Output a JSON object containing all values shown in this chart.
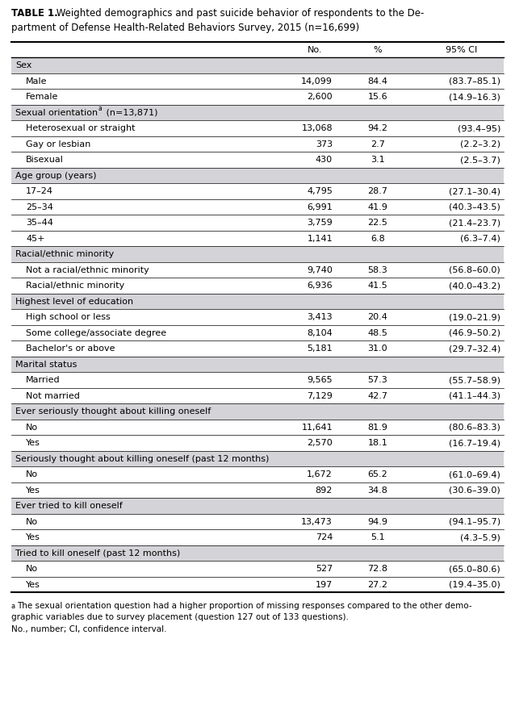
{
  "title_bold": "TABLE 1.",
  "title_line1_normal": " Weighted demographics and past suicide behavior of respondents to the De-",
  "title_line2_normal": "partment of Defense Health-Related Behaviors Survey, 2015 (n=16,699)",
  "col_headers": [
    "No.",
    "%",
    "95% CI"
  ],
  "rows": [
    {
      "label": "Sex",
      "indent": 0,
      "header": true,
      "no": "",
      "pct": "",
      "ci": ""
    },
    {
      "label": "Male",
      "indent": 1,
      "header": false,
      "no": "14,099",
      "pct": "84.4",
      "ci": "(83.7–85.1)"
    },
    {
      "label": "Female",
      "indent": 1,
      "header": false,
      "no": "2,600",
      "pct": "15.6",
      "ci": "(14.9–16.3)"
    },
    {
      "label": "Sexual orientation",
      "label2": " (n=13,871)",
      "superscript": "a",
      "indent": 0,
      "header": true,
      "no": "",
      "pct": "",
      "ci": ""
    },
    {
      "label": "Heterosexual or straight",
      "indent": 1,
      "header": false,
      "no": "13,068",
      "pct": "94.2",
      "ci": "(93.4–95)"
    },
    {
      "label": "Gay or lesbian",
      "indent": 1,
      "header": false,
      "no": "373",
      "pct": "2.7",
      "ci": "(2.2–3.2)"
    },
    {
      "label": "Bisexual",
      "indent": 1,
      "header": false,
      "no": "430",
      "pct": "3.1",
      "ci": "(2.5–3.7)"
    },
    {
      "label": "Age group (years)",
      "indent": 0,
      "header": true,
      "no": "",
      "pct": "",
      "ci": ""
    },
    {
      "label": "17–24",
      "indent": 1,
      "header": false,
      "no": "4,795",
      "pct": "28.7",
      "ci": "(27.1–30.4)"
    },
    {
      "label": "25–34",
      "indent": 1,
      "header": false,
      "no": "6,991",
      "pct": "41.9",
      "ci": "(40.3–43.5)"
    },
    {
      "label": "35–44",
      "indent": 1,
      "header": false,
      "no": "3,759",
      "pct": "22.5",
      "ci": "(21.4–23.7)"
    },
    {
      "label": "45+",
      "indent": 1,
      "header": false,
      "no": "1,141",
      "pct": "6.8",
      "ci": "(6.3–7.4)"
    },
    {
      "label": "Racial/ethnic minority",
      "indent": 0,
      "header": true,
      "no": "",
      "pct": "",
      "ci": ""
    },
    {
      "label": "Not a racial/ethnic minority",
      "indent": 1,
      "header": false,
      "no": "9,740",
      "pct": "58.3",
      "ci": "(56.8–60.0)"
    },
    {
      "label": "Racial/ethnic minority",
      "indent": 1,
      "header": false,
      "no": "6,936",
      "pct": "41.5",
      "ci": "(40.0–43.2)"
    },
    {
      "label": "Highest level of education",
      "indent": 0,
      "header": true,
      "no": "",
      "pct": "",
      "ci": ""
    },
    {
      "label": "High school or less",
      "indent": 1,
      "header": false,
      "no": "3,413",
      "pct": "20.4",
      "ci": "(19.0–21.9)"
    },
    {
      "label": "Some college/associate degree",
      "indent": 1,
      "header": false,
      "no": "8,104",
      "pct": "48.5",
      "ci": "(46.9–50.2)"
    },
    {
      "label": "Bachelor's or above",
      "indent": 1,
      "header": false,
      "no": "5,181",
      "pct": "31.0",
      "ci": "(29.7–32.4)"
    },
    {
      "label": "Marital status",
      "indent": 0,
      "header": true,
      "no": "",
      "pct": "",
      "ci": ""
    },
    {
      "label": "Married",
      "indent": 1,
      "header": false,
      "no": "9,565",
      "pct": "57.3",
      "ci": "(55.7–58.9)"
    },
    {
      "label": "Not married",
      "indent": 1,
      "header": false,
      "no": "7,129",
      "pct": "42.7",
      "ci": "(41.1–44.3)"
    },
    {
      "label": "Ever seriously thought about killing oneself",
      "indent": 0,
      "header": true,
      "no": "",
      "pct": "",
      "ci": ""
    },
    {
      "label": "No",
      "indent": 1,
      "header": false,
      "no": "11,641",
      "pct": "81.9",
      "ci": "(80.6–83.3)"
    },
    {
      "label": "Yes",
      "indent": 1,
      "header": false,
      "no": "2,570",
      "pct": "18.1",
      "ci": "(16.7–19.4)"
    },
    {
      "label": "Seriously thought about killing oneself (past 12 months)",
      "indent": 0,
      "header": true,
      "no": "",
      "pct": "",
      "ci": ""
    },
    {
      "label": "No",
      "indent": 1,
      "header": false,
      "no": "1,672",
      "pct": "65.2",
      "ci": "(61.0–69.4)"
    },
    {
      "label": "Yes",
      "indent": 1,
      "header": false,
      "no": "892",
      "pct": "34.8",
      "ci": "(30.6–39.0)"
    },
    {
      "label": "Ever tried to kill oneself",
      "indent": 0,
      "header": true,
      "no": "",
      "pct": "",
      "ci": ""
    },
    {
      "label": "No",
      "indent": 1,
      "header": false,
      "no": "13,473",
      "pct": "94.9",
      "ci": "(94.1–95.7)"
    },
    {
      "label": "Yes",
      "indent": 1,
      "header": false,
      "no": "724",
      "pct": "5.1",
      "ci": "(4.3–5.9)"
    },
    {
      "label": "Tried to kill oneself (past 12 months)",
      "indent": 0,
      "header": true,
      "no": "",
      "pct": "",
      "ci": ""
    },
    {
      "label": "No",
      "indent": 1,
      "header": false,
      "no": "527",
      "pct": "72.8",
      "ci": "(65.0–80.6)"
    },
    {
      "label": "Yes",
      "indent": 1,
      "header": false,
      "no": "197",
      "pct": "27.2",
      "ci": "(19.4–35.0)"
    }
  ],
  "footnote_line1": "The sexual orientation question had a higher proportion of missing responses compared to the other demo-",
  "footnote_line2": "graphic variables due to survey placement (question 127 out of 133 questions).",
  "footnote_line3": "No., number; CI, confidence interval.",
  "bg_color": "#ffffff",
  "section_bg": "#d4d4d8",
  "font_size": 8.0,
  "font_size_small": 6.5
}
